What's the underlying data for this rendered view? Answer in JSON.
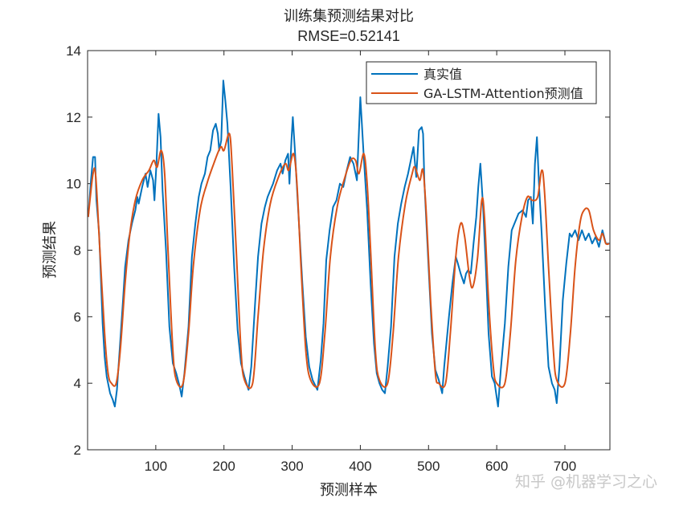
{
  "chart_data": {
    "type": "line",
    "title": "训练集预测结果对比",
    "subtitle": "RMSE=0.52141",
    "xlabel": "预测样本",
    "ylabel": "预测结果",
    "xlim": [
      0,
      766
    ],
    "ylim": [
      2,
      14
    ],
    "xticks": [
      100,
      200,
      300,
      400,
      500,
      600,
      700
    ],
    "yticks": [
      2,
      4,
      6,
      8,
      10,
      12,
      14
    ],
    "grid": false,
    "legend_placement": "top-right",
    "series": [
      {
        "name": "真实值",
        "color": "#0072BD",
        "x": [
          1,
          5,
          8,
          11,
          13,
          17,
          22,
          25,
          28,
          33,
          37,
          40,
          43,
          47,
          52,
          55,
          60,
          65,
          70,
          73,
          75,
          80,
          85,
          88,
          92,
          96,
          98,
          101,
          104,
          107,
          110,
          115,
          120,
          125,
          130,
          135,
          138,
          142,
          148,
          153,
          158,
          163,
          167,
          172,
          176,
          180,
          184,
          188,
          191,
          193,
          196,
          199,
          202,
          205,
          210,
          215,
          220,
          225,
          230,
          236,
          240,
          246,
          250,
          255,
          260,
          264,
          268,
          272,
          278,
          283,
          286,
          290,
          294,
          296,
          299,
          301,
          304,
          308,
          315,
          320,
          325,
          330,
          337,
          342,
          346,
          350,
          355,
          360,
          365,
          370,
          375,
          380,
          385,
          390,
          395,
          400,
          402,
          405,
          410,
          415,
          420,
          424,
          428,
          432,
          436,
          440,
          445,
          450,
          455,
          460,
          465,
          470,
          474,
          478,
          482,
          486,
          490,
          492,
          494,
          500,
          505,
          510,
          515,
          520,
          523,
          530,
          535,
          540,
          543,
          547,
          552,
          555,
          558,
          562,
          566,
          570,
          573,
          576,
          580,
          584,
          588,
          593,
          597,
          602,
          606,
          612,
          617,
          622,
          626,
          632,
          638,
          643,
          646,
          650,
          653,
          656,
          659,
          662,
          666,
          671,
          676,
          681,
          685,
          688,
          692,
          697,
          702,
          707,
          710,
          715,
          720,
          725,
          730,
          735,
          740,
          745,
          750,
          755,
          760,
          765
        ],
        "y": [
          9.0,
          10.1,
          10.8,
          10.8,
          9.5,
          8.5,
          5.8,
          4.8,
          4.2,
          3.7,
          3.5,
          3.3,
          3.8,
          5.0,
          6.5,
          7.5,
          8.3,
          8.8,
          9.2,
          9.6,
          9.4,
          9.9,
          10.3,
          9.9,
          10.4,
          10.1,
          9.5,
          10.6,
          12.1,
          11.4,
          9.8,
          8.0,
          5.7,
          4.6,
          4.3,
          3.9,
          3.6,
          4.3,
          5.7,
          7.8,
          8.8,
          9.6,
          10.0,
          10.3,
          10.8,
          11.0,
          11.6,
          11.8,
          11.5,
          11.0,
          11.3,
          13.1,
          12.5,
          11.8,
          9.8,
          7.5,
          5.6,
          4.6,
          4.2,
          3.8,
          4.5,
          6.5,
          7.8,
          8.8,
          9.3,
          9.6,
          9.8,
          10.0,
          10.4,
          10.6,
          10.3,
          10.7,
          10.9,
          10.0,
          11.3,
          12.0,
          11.0,
          9.5,
          7.0,
          5.4,
          4.5,
          4.1,
          3.8,
          4.7,
          5.8,
          7.7,
          8.6,
          9.3,
          9.5,
          10.0,
          9.9,
          10.4,
          10.8,
          10.6,
          10.1,
          12.6,
          11.9,
          10.8,
          9.2,
          7.0,
          5.2,
          4.3,
          4.0,
          3.8,
          3.7,
          4.5,
          5.7,
          7.8,
          8.8,
          9.4,
          9.9,
          10.3,
          10.7,
          11.1,
          10.2,
          11.6,
          11.7,
          11.5,
          10.0,
          7.5,
          5.5,
          4.4,
          4.1,
          3.7,
          4.5,
          6.0,
          7.0,
          7.8,
          7.6,
          7.3,
          7.0,
          7.3,
          7.4,
          7.3,
          8.2,
          9.0,
          9.9,
          10.6,
          9.3,
          7.5,
          5.5,
          4.2,
          4.0,
          3.3,
          4.4,
          5.8,
          7.5,
          8.6,
          8.8,
          9.1,
          9.2,
          9.0,
          9.5,
          9.6,
          8.8,
          10.6,
          11.4,
          10.0,
          8.5,
          6.3,
          4.5,
          4.0,
          3.8,
          3.4,
          4.5,
          6.5,
          7.6,
          8.5,
          8.4,
          8.6,
          8.3,
          8.6,
          8.3,
          8.5,
          8.2,
          8.4,
          8.1,
          8.6,
          8.2,
          8.2
        ]
      },
      {
        "name": "GA-LSTM-Attention预测值",
        "color": "#D95319",
        "x": [
          1,
          8,
          12,
          18,
          25,
          30,
          35,
          42,
          48,
          55,
          62,
          70,
          80,
          90,
          97,
          102,
          108,
          113,
          118,
          125,
          130,
          140,
          148,
          155,
          165,
          175,
          185,
          195,
          200,
          208,
          212,
          218,
          225,
          230,
          242,
          250,
          258,
          268,
          280,
          290,
          295,
          302,
          307,
          313,
          320,
          327,
          340,
          348,
          356,
          366,
          376,
          386,
          393,
          398,
          405,
          410,
          415,
          422,
          428,
          440,
          448,
          456,
          466,
          476,
          480,
          487,
          492,
          497,
          503,
          510,
          515,
          525,
          532,
          540,
          547,
          553,
          560,
          565,
          572,
          578,
          582,
          588,
          595,
          600,
          612,
          620,
          628,
          637,
          645,
          652,
          660,
          666,
          670,
          676,
          683,
          688,
          700,
          708,
          715,
          722,
          728,
          735,
          742,
          750,
          755,
          760,
          765
        ],
        "y": [
          9.0,
          10.3,
          10.2,
          8.0,
          5.5,
          4.3,
          4.0,
          4.0,
          5.0,
          7.0,
          8.5,
          9.5,
          10.1,
          10.4,
          10.7,
          10.5,
          11.0,
          10.3,
          8.0,
          5.0,
          4.1,
          4.0,
          5.5,
          7.5,
          9.2,
          10.0,
          10.6,
          11.1,
          11.0,
          11.5,
          10.5,
          8.0,
          5.0,
          4.1,
          4.0,
          6.0,
          8.0,
          9.4,
          10.2,
          10.6,
          10.4,
          10.9,
          10.0,
          7.5,
          5.0,
          4.1,
          4.0,
          5.5,
          7.8,
          9.3,
          10.1,
          10.7,
          10.7,
          10.3,
          10.9,
          10.0,
          8.0,
          5.0,
          4.1,
          4.0,
          5.5,
          7.8,
          9.4,
          10.3,
          10.5,
          10.1,
          10.4,
          9.0,
          6.5,
          4.3,
          4.0,
          4.0,
          5.5,
          7.8,
          8.8,
          8.4,
          7.2,
          6.9,
          7.8,
          9.5,
          9.0,
          6.5,
          4.5,
          4.0,
          4.0,
          5.5,
          7.7,
          9.0,
          9.6,
          9.5,
          9.6,
          10.4,
          9.8,
          7.5,
          5.0,
          4.1,
          4.0,
          5.5,
          7.5,
          8.8,
          9.2,
          9.2,
          8.6,
          8.3,
          8.5,
          8.2,
          8.2
        ]
      }
    ]
  },
  "watermark": "知乎 @机器学习之心"
}
